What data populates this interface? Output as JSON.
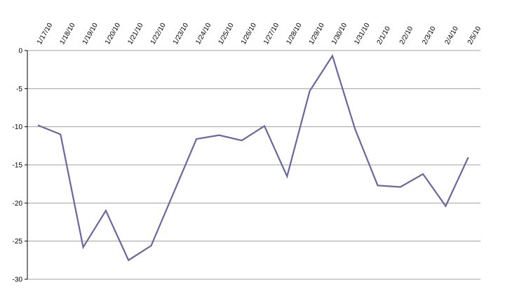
{
  "chart_data": {
    "type": "line",
    "title": "",
    "xlabel": "",
    "ylabel": "",
    "x": [
      "1/17/10",
      "1/18/10",
      "1/19/10",
      "1/20/10",
      "1/21/10",
      "1/22/10",
      "1/23/10",
      "1/24/10",
      "1/25/10",
      "1/26/10",
      "1/27/10",
      "1/28/10",
      "1/29/10",
      "1/30/10",
      "1/31/10",
      "2/1/10",
      "2/2/10",
      "2/3/10",
      "2/4/10",
      "2/5/10"
    ],
    "series": [
      {
        "values": [
          -9.8,
          -11.0,
          -25.8,
          -21.0,
          -27.5,
          -25.6,
          -18.6,
          -11.6,
          -11.1,
          -11.8,
          -9.9,
          -16.5,
          -5.3,
          -0.7,
          -10.3,
          -17.7,
          -17.9,
          -16.2,
          -20.4,
          -14.0
        ],
        "color": "#6b66a0"
      }
    ],
    "ylim": [
      -30,
      0
    ],
    "yticks": [
      0,
      -5,
      -10,
      -15,
      -20,
      -25,
      -30
    ],
    "grid": true,
    "legend": "none",
    "gridline_color": "#a0a0a0",
    "axis_color": "#000000"
  }
}
